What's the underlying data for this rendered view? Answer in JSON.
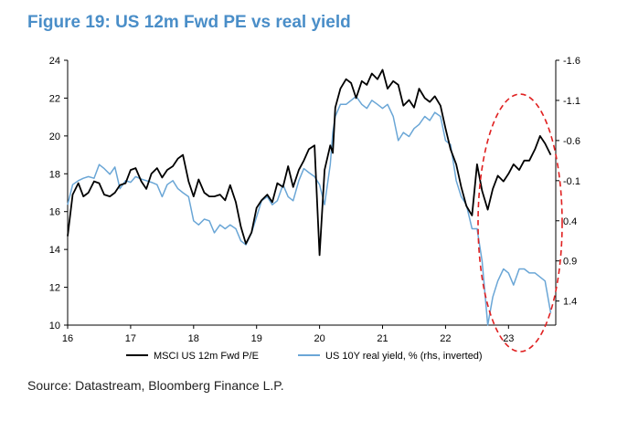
{
  "title": "Figure 19: US 12m Fwd PE vs real yield",
  "source": "Source: Datastream, Bloomberg Finance L.P.",
  "colors": {
    "title": "#4a8ec8",
    "pe": "#000000",
    "yield": "#6aa6d6",
    "highlight": "#e02020"
  },
  "chart_data": {
    "type": "line",
    "xlim": [
      16,
      23.75
    ],
    "x_ticks": [
      "16",
      "17",
      "18",
      "19",
      "20",
      "21",
      "22",
      "23"
    ],
    "y_left": {
      "lim": [
        10,
        24
      ],
      "ticks": [
        "10",
        "12",
        "14",
        "16",
        "18",
        "20",
        "22",
        "24"
      ]
    },
    "y_right": {
      "lim": [
        -1.6,
        1.7
      ],
      "inverted": true,
      "ticks": [
        "-1.6",
        "-1.1",
        "-0.6",
        "-0.1",
        "0.4",
        "0.9",
        "1.4"
      ]
    },
    "series": [
      {
        "name": "MSCI US 12m Fwd P/E",
        "axis": "left",
        "x": [
          16.0,
          16.08,
          16.17,
          16.25,
          16.33,
          16.42,
          16.5,
          16.58,
          16.67,
          16.75,
          16.83,
          16.92,
          17.0,
          17.08,
          17.17,
          17.25,
          17.33,
          17.42,
          17.5,
          17.58,
          17.67,
          17.75,
          17.83,
          17.92,
          18.0,
          18.08,
          18.17,
          18.25,
          18.33,
          18.42,
          18.5,
          18.58,
          18.67,
          18.75,
          18.83,
          18.92,
          19.0,
          19.08,
          19.17,
          19.25,
          19.33,
          19.42,
          19.5,
          19.58,
          19.67,
          19.75,
          19.83,
          19.92,
          20.0,
          20.08,
          20.17,
          20.21,
          20.25,
          20.33,
          20.42,
          20.5,
          20.58,
          20.67,
          20.75,
          20.83,
          20.92,
          21.0,
          21.08,
          21.17,
          21.25,
          21.33,
          21.42,
          21.5,
          21.58,
          21.67,
          21.75,
          21.83,
          21.92,
          22.0,
          22.08,
          22.17,
          22.25,
          22.33,
          22.42,
          22.5,
          22.58,
          22.67,
          22.75,
          22.83,
          22.92,
          23.0,
          23.08,
          23.17,
          23.25,
          23.33,
          23.42,
          23.5,
          23.58,
          23.67
        ],
        "values": [
          14.7,
          16.9,
          17.5,
          16.8,
          17.0,
          17.6,
          17.5,
          16.9,
          16.8,
          17.0,
          17.4,
          17.5,
          18.2,
          18.3,
          17.6,
          17.2,
          18.0,
          18.3,
          17.8,
          18.2,
          18.4,
          18.8,
          19.0,
          17.6,
          16.8,
          17.7,
          17.0,
          16.8,
          16.8,
          16.9,
          16.6,
          17.4,
          16.5,
          15.2,
          14.3,
          14.9,
          16.2,
          16.6,
          16.9,
          16.5,
          17.5,
          17.3,
          18.4,
          17.3,
          18.2,
          18.7,
          19.3,
          19.5,
          13.7,
          18.2,
          19.5,
          19.1,
          21.5,
          22.5,
          23.0,
          22.8,
          22.0,
          22.9,
          22.7,
          23.3,
          23.0,
          23.5,
          22.5,
          22.9,
          22.7,
          21.6,
          21.9,
          21.5,
          22.5,
          22.0,
          21.8,
          22.1,
          21.6,
          20.4,
          19.3,
          18.5,
          17.3,
          16.3,
          15.8,
          18.5,
          17.1,
          16.1,
          17.2,
          17.9,
          17.6,
          18.0,
          18.5,
          18.2,
          18.7,
          18.7,
          19.3,
          20.0,
          19.6,
          19.0
        ]
      },
      {
        "name": "US 10Y real yield, % (rhs, inverted)",
        "axis": "right",
        "x": [
          16.0,
          16.08,
          16.17,
          16.25,
          16.33,
          16.42,
          16.5,
          16.58,
          16.67,
          16.75,
          16.83,
          16.92,
          17.0,
          17.08,
          17.17,
          17.25,
          17.33,
          17.42,
          17.5,
          17.58,
          17.67,
          17.75,
          17.83,
          17.92,
          18.0,
          18.08,
          18.17,
          18.25,
          18.33,
          18.42,
          18.5,
          18.58,
          18.67,
          18.75,
          18.83,
          18.92,
          19.0,
          19.08,
          19.17,
          19.25,
          19.33,
          19.42,
          19.5,
          19.58,
          19.67,
          19.75,
          19.83,
          19.92,
          20.0,
          20.08,
          20.17,
          20.21,
          20.25,
          20.33,
          20.42,
          20.5,
          20.58,
          20.67,
          20.75,
          20.83,
          20.92,
          21.0,
          21.08,
          21.17,
          21.25,
          21.33,
          21.42,
          21.5,
          21.58,
          21.67,
          21.75,
          21.83,
          21.92,
          22.0,
          22.08,
          22.17,
          22.25,
          22.33,
          22.42,
          22.5,
          22.58,
          22.67,
          22.75,
          22.83,
          22.92,
          23.0,
          23.08,
          23.17,
          23.25,
          23.33,
          23.42,
          23.5,
          23.58,
          23.67
        ],
        "values": [
          0.2,
          -0.05,
          -0.1,
          -0.13,
          -0.15,
          -0.13,
          -0.3,
          -0.25,
          -0.18,
          -0.27,
          0.0,
          -0.1,
          -0.08,
          -0.15,
          -0.12,
          -0.1,
          -0.08,
          -0.05,
          0.1,
          -0.05,
          -0.1,
          0.0,
          0.05,
          0.1,
          0.4,
          0.45,
          0.38,
          0.4,
          0.55,
          0.45,
          0.5,
          0.45,
          0.5,
          0.65,
          0.7,
          0.55,
          0.35,
          0.15,
          0.1,
          0.2,
          0.15,
          -0.05,
          0.1,
          0.15,
          -0.1,
          -0.25,
          -0.2,
          -0.15,
          -0.05,
          0.2,
          -0.3,
          -0.7,
          -0.9,
          -1.05,
          -1.05,
          -1.1,
          -1.15,
          -1.05,
          -1.0,
          -1.1,
          -1.05,
          -1.0,
          -1.05,
          -0.9,
          -0.6,
          -0.7,
          -0.65,
          -0.75,
          -0.8,
          -0.9,
          -0.85,
          -0.95,
          -0.9,
          -0.6,
          -0.55,
          -0.1,
          0.1,
          0.2,
          0.5,
          0.5,
          0.9,
          1.7,
          1.35,
          1.15,
          1.0,
          1.05,
          1.2,
          1.0,
          1.0,
          1.05,
          1.05,
          1.1,
          1.15,
          1.55
        ]
      }
    ]
  }
}
